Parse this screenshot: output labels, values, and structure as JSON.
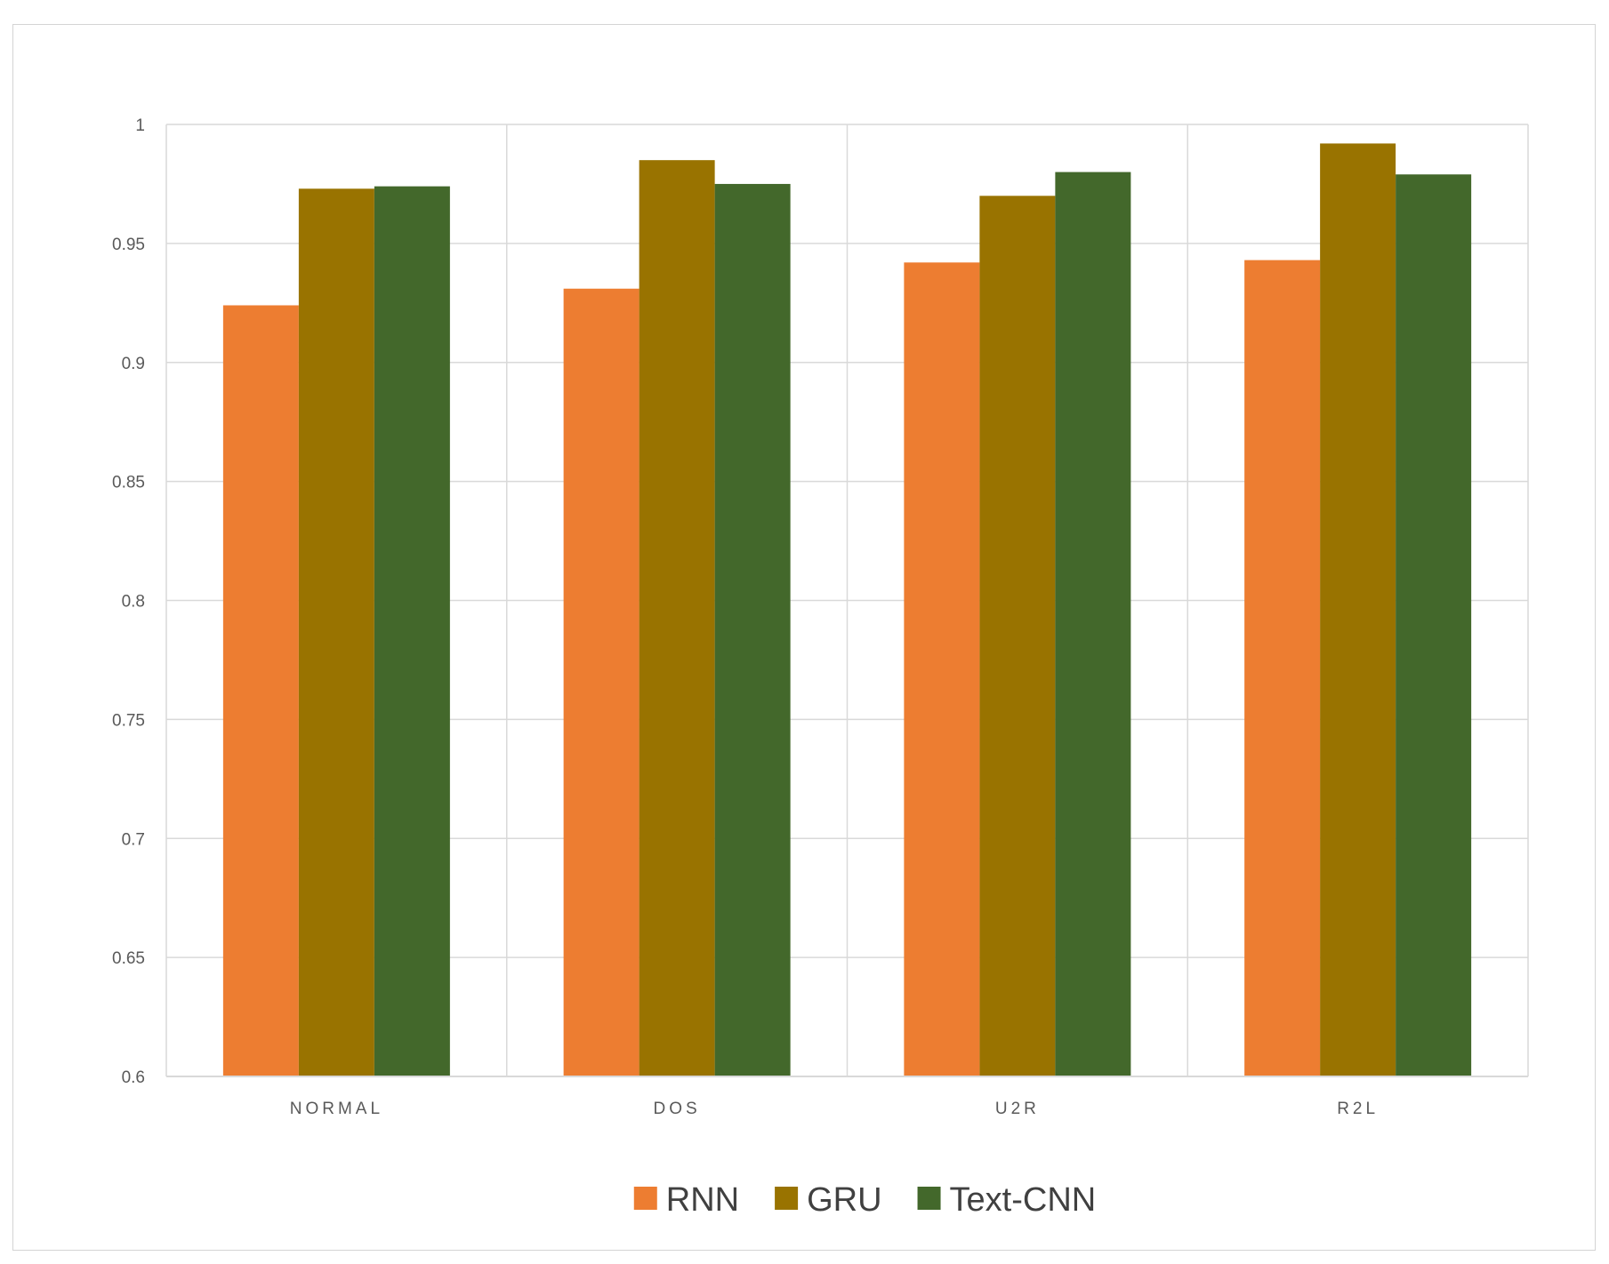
{
  "chart_data": {
    "type": "bar",
    "categories": [
      "NORMAL",
      "DOS",
      "U2R",
      "R2L"
    ],
    "series": [
      {
        "name": "RNN",
        "color": "#ED7D31",
        "values": [
          0.924,
          0.931,
          0.942,
          0.943
        ]
      },
      {
        "name": "GRU",
        "color": "#997300",
        "values": [
          0.973,
          0.985,
          0.97,
          0.992
        ]
      },
      {
        "name": "Text-CNN",
        "color": "#43682B",
        "values": [
          0.974,
          0.975,
          0.98,
          0.979
        ]
      }
    ],
    "title": "",
    "xlabel": "",
    "ylabel": "",
    "ylim": [
      0.6,
      1.0
    ],
    "yticks": [
      "0.6",
      "0.65",
      "0.7",
      "0.75",
      "0.8",
      "0.85",
      "0.9",
      "0.95",
      "1"
    ],
    "grid": true,
    "legend_position": "bottom"
  }
}
